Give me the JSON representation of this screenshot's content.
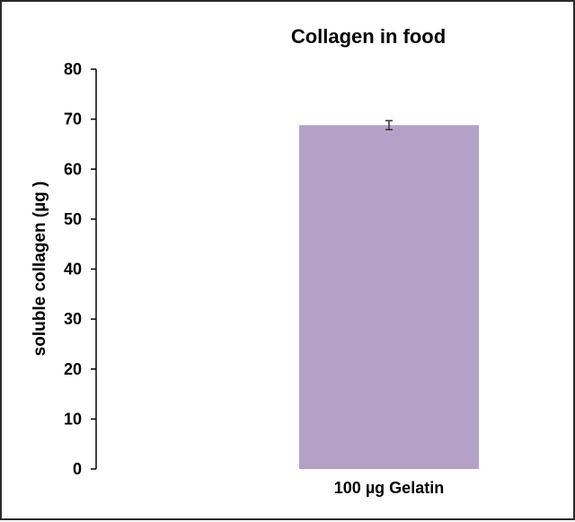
{
  "chart_data": {
    "type": "bar",
    "title": "Collagen in food",
    "xlabel": "",
    "ylabel": "soluble collagen (µg )",
    "categories": [
      "100 µg Gelatin"
    ],
    "values": [
      68.8
    ],
    "error": [
      0.9
    ],
    "ylim": [
      0,
      80
    ],
    "yticks": [
      0,
      10,
      20,
      30,
      40,
      50,
      60,
      70,
      80
    ],
    "grid": false,
    "legend": "none"
  },
  "colors": {
    "bar": "#b3a1c8",
    "axis": "#000000",
    "error_bar": "#333333",
    "frame": "#2b2b2b"
  }
}
